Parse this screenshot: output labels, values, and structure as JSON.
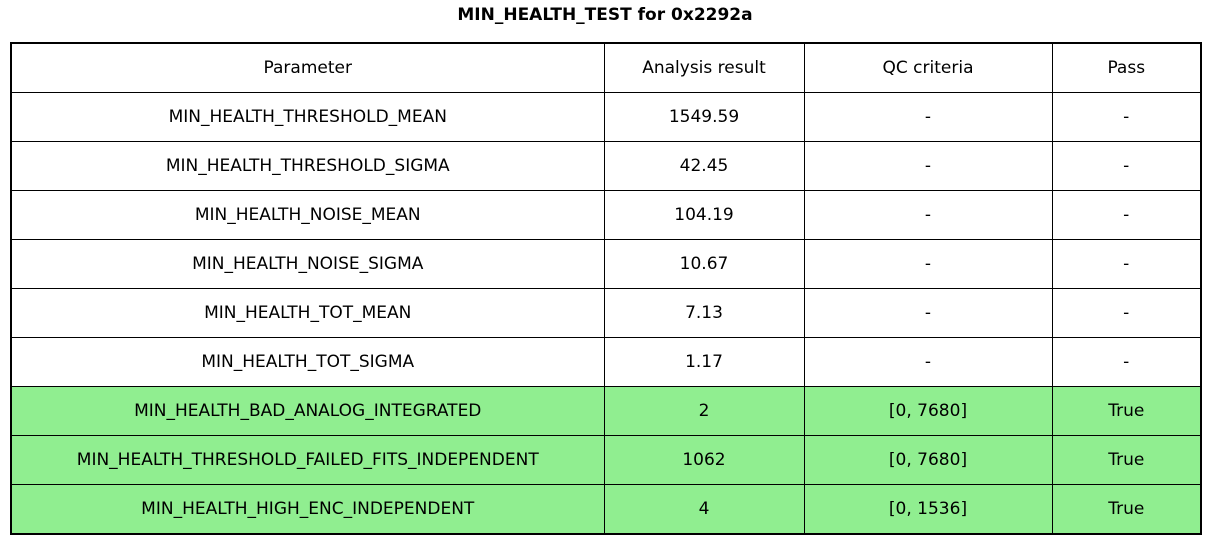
{
  "title": "MIN_HEALTH_TEST for 0x2292a",
  "colors": {
    "pass_green": "#90ee90",
    "border": "#000000",
    "background": "#ffffff"
  },
  "table": {
    "headers": [
      "Parameter",
      "Analysis result",
      "QC criteria",
      "Pass"
    ],
    "rows": [
      {
        "parameter": "MIN_HEALTH_THRESHOLD_MEAN",
        "analysis_result": "1549.59",
        "qc_criteria": "-",
        "pass": "-",
        "highlighted": false
      },
      {
        "parameter": "MIN_HEALTH_THRESHOLD_SIGMA",
        "analysis_result": "42.45",
        "qc_criteria": "-",
        "pass": "-",
        "highlighted": false
      },
      {
        "parameter": "MIN_HEALTH_NOISE_MEAN",
        "analysis_result": "104.19",
        "qc_criteria": "-",
        "pass": "-",
        "highlighted": false
      },
      {
        "parameter": "MIN_HEALTH_NOISE_SIGMA",
        "analysis_result": "10.67",
        "qc_criteria": "-",
        "pass": "-",
        "highlighted": false
      },
      {
        "parameter": "MIN_HEALTH_TOT_MEAN",
        "analysis_result": "7.13",
        "qc_criteria": "-",
        "pass": "-",
        "highlighted": false
      },
      {
        "parameter": "MIN_HEALTH_TOT_SIGMA",
        "analysis_result": "1.17",
        "qc_criteria": "-",
        "pass": "-",
        "highlighted": false
      },
      {
        "parameter": "MIN_HEALTH_BAD_ANALOG_INTEGRATED",
        "analysis_result": "2",
        "qc_criteria": "[0, 7680]",
        "pass": "True",
        "highlighted": true
      },
      {
        "parameter": "MIN_HEALTH_THRESHOLD_FAILED_FITS_INDEPENDENT",
        "analysis_result": "1062",
        "qc_criteria": "[0, 7680]",
        "pass": "True",
        "highlighted": true
      },
      {
        "parameter": "MIN_HEALTH_HIGH_ENC_INDEPENDENT",
        "analysis_result": "4",
        "qc_criteria": "[0, 1536]",
        "pass": "True",
        "highlighted": true
      }
    ]
  },
  "chart_data": {
    "type": "table",
    "title": "MIN_HEALTH_TEST for 0x2292a",
    "columns": [
      "Parameter",
      "Analysis result",
      "QC criteria",
      "Pass"
    ],
    "rows": [
      [
        "MIN_HEALTH_THRESHOLD_MEAN",
        "1549.59",
        "-",
        "-"
      ],
      [
        "MIN_HEALTH_THRESHOLD_SIGMA",
        "42.45",
        "-",
        "-"
      ],
      [
        "MIN_HEALTH_NOISE_MEAN",
        "104.19",
        "-",
        "-"
      ],
      [
        "MIN_HEALTH_NOISE_SIGMA",
        "10.67",
        "-",
        "-"
      ],
      [
        "MIN_HEALTH_TOT_MEAN",
        "7.13",
        "-",
        "-"
      ],
      [
        "MIN_HEALTH_TOT_SIGMA",
        "1.17",
        "-",
        "-"
      ],
      [
        "MIN_HEALTH_BAD_ANALOG_INTEGRATED",
        "2",
        "[0, 7680]",
        "True"
      ],
      [
        "MIN_HEALTH_THRESHOLD_FAILED_FITS_INDEPENDENT",
        "1062",
        "[0, 7680]",
        "True"
      ],
      [
        "MIN_HEALTH_HIGH_ENC_INDEPENDENT",
        "4",
        "[0, 1536]",
        "True"
      ]
    ],
    "highlighted_rows": [
      6,
      7,
      8
    ],
    "highlight_color": "#90ee90",
    "layout_hints": {
      "grid": true,
      "title_position": "top-center",
      "cell_alignment": "center"
    }
  }
}
